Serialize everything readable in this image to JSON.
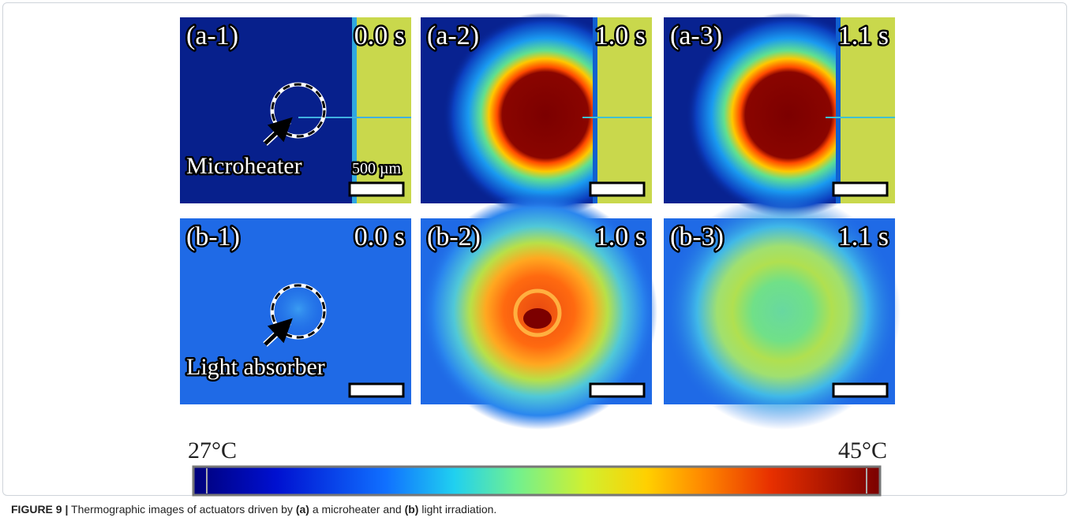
{
  "panels": [
    {
      "label": "(a-1)",
      "time": "0.0 s",
      "annotation": "Microheater",
      "scale_bar": "500 µm"
    },
    {
      "label": "(a-2)",
      "time": "1.0 s"
    },
    {
      "label": "(a-3)",
      "time": "1.1 s"
    },
    {
      "label": "(b-1)",
      "time": "0.0 s",
      "annotation": "Light absorber"
    },
    {
      "label": "(b-2)",
      "time": "1.0 s"
    },
    {
      "label": "(b-3)",
      "time": "1.1 s"
    }
  ],
  "colorbar": {
    "min_label": "27°C",
    "max_label": "45°C"
  },
  "caption": {
    "figure": "FIGURE 9 |",
    "text_1": "Thermographic images of actuators driven by",
    "bold_a": "(a)",
    "text_2": "a microheater and",
    "bold_b": "(b)",
    "text_3": "light irradiation."
  }
}
